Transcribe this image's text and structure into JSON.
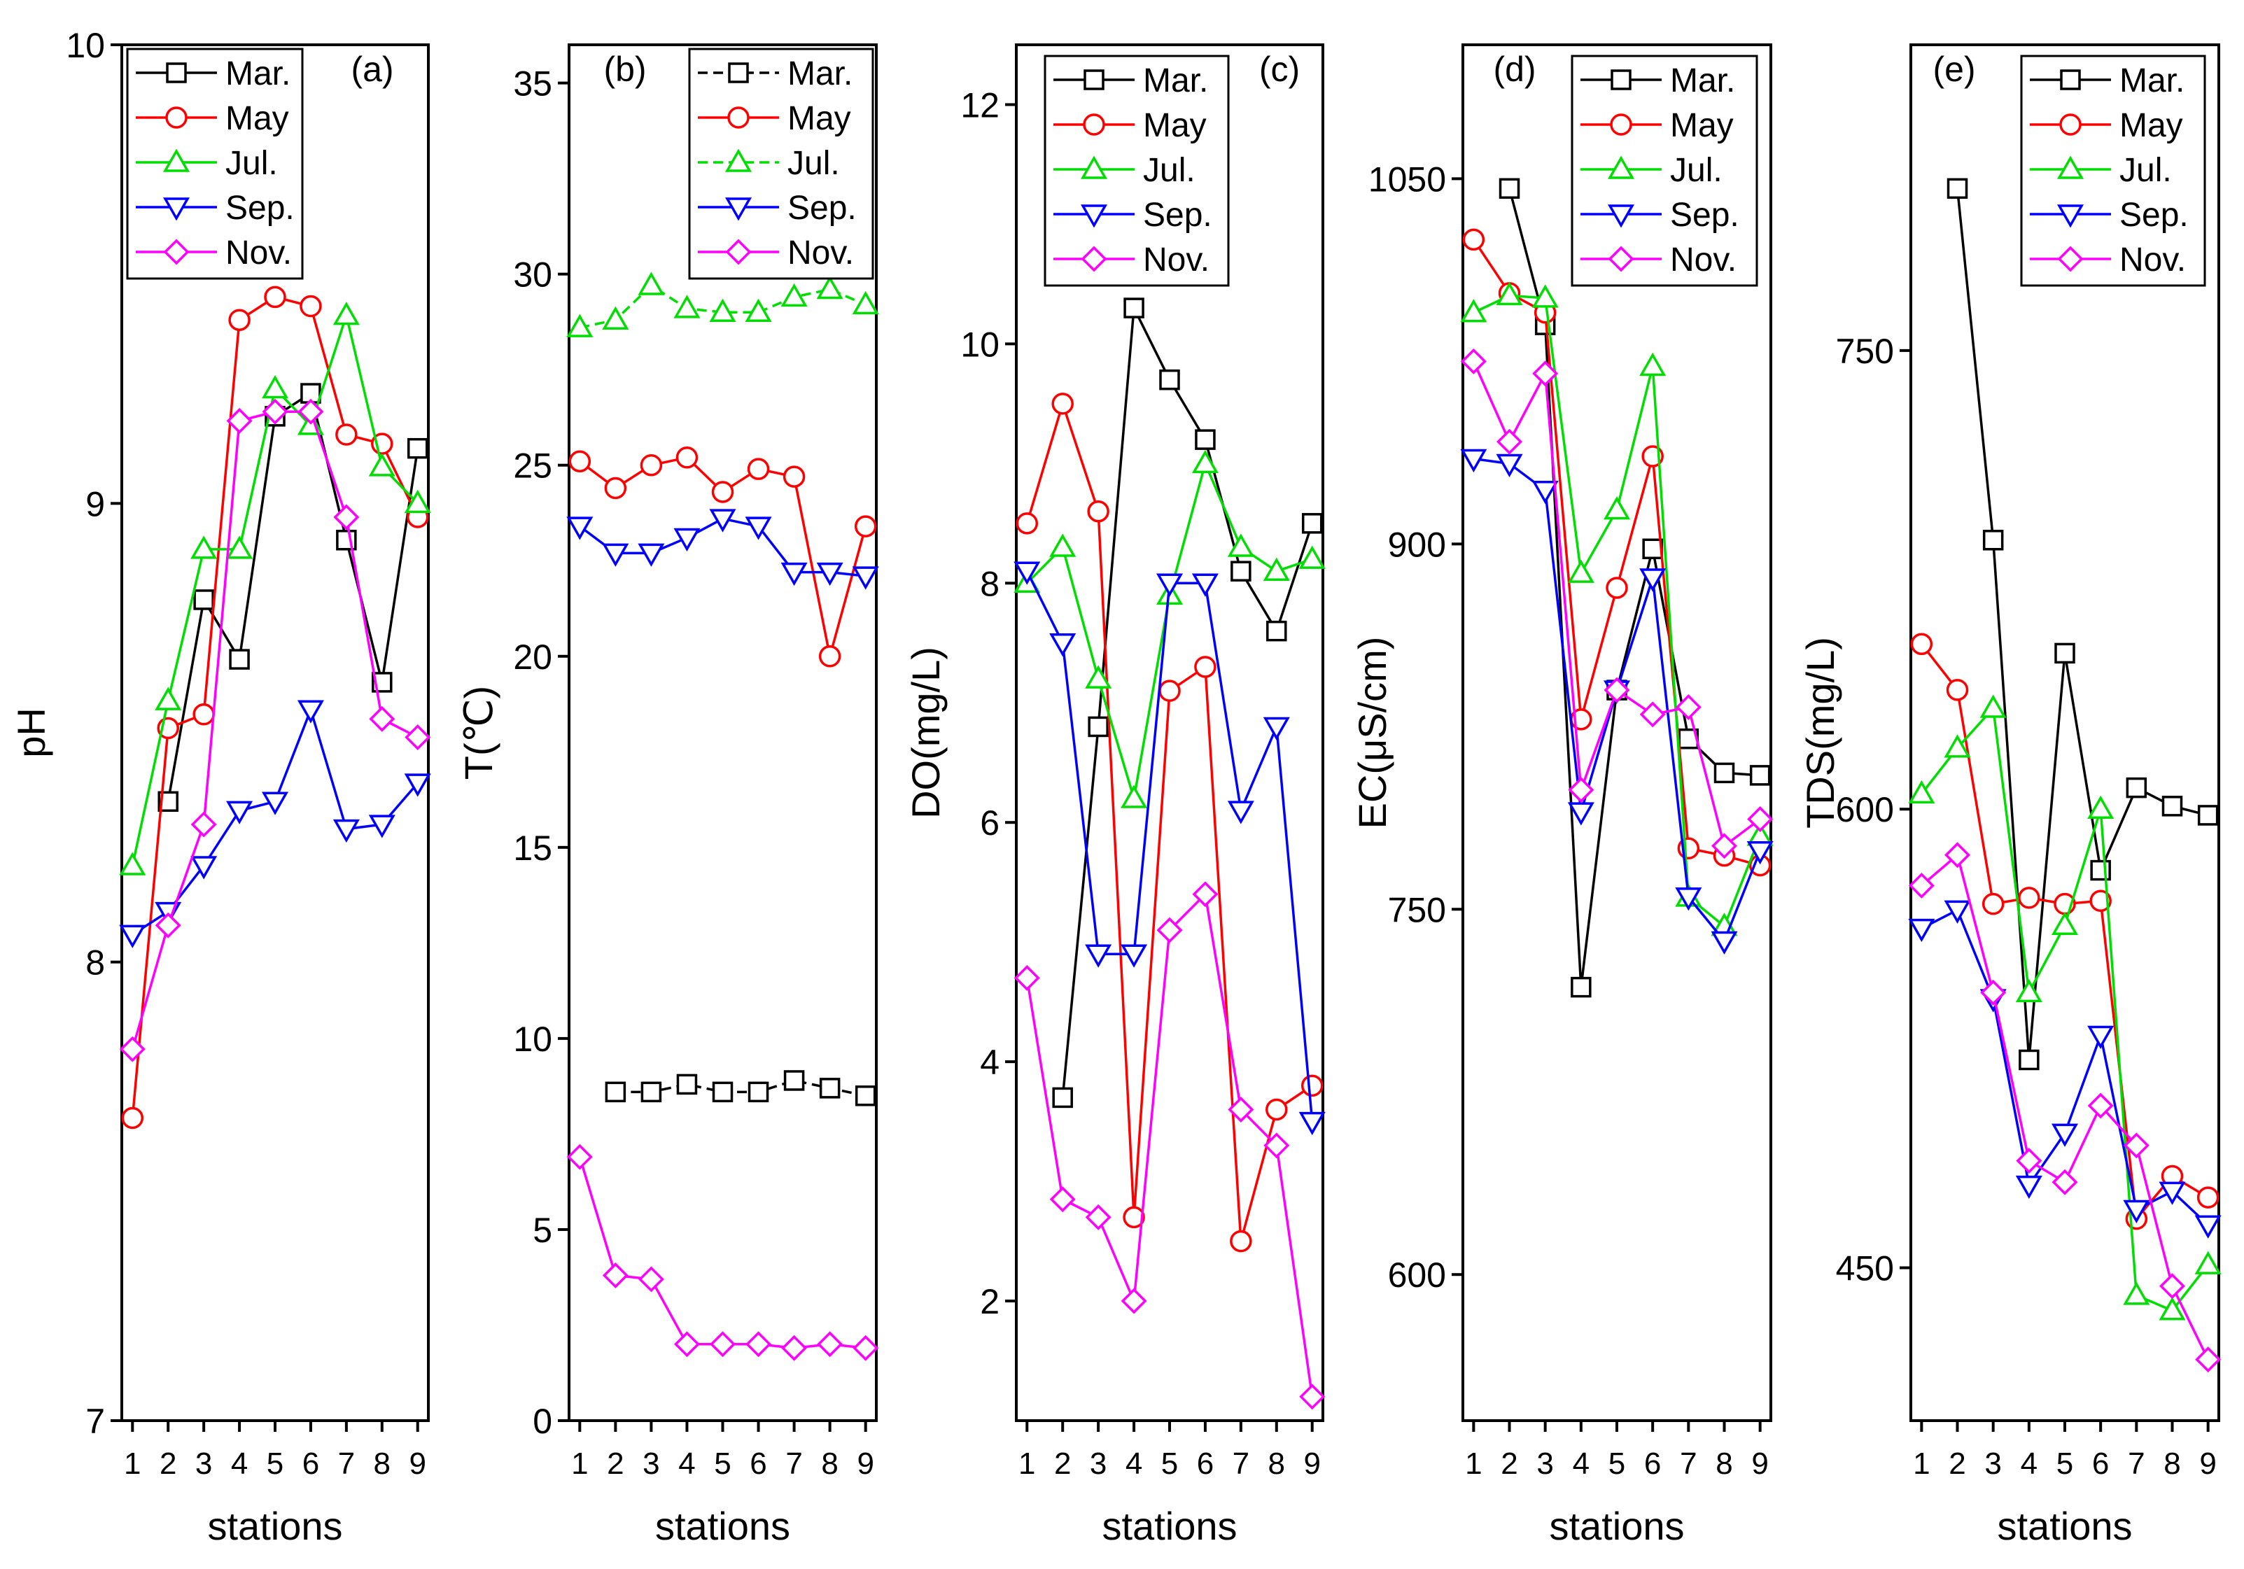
{
  "chart_data": [
    {
      "type": "line",
      "panel_label": "(a)",
      "ylabel": "pH",
      "xlabel": "stations",
      "ylim": [
        7,
        10
      ],
      "yticks": [
        7,
        8,
        9,
        10
      ],
      "xlim": [
        0.7,
        9.3
      ],
      "x": [
        1,
        2,
        3,
        4,
        5,
        6,
        7,
        8,
        9
      ],
      "legend_position": "top-left",
      "series": [
        {
          "name": "Mar.",
          "color": "#000000",
          "marker": "square",
          "dashed": false,
          "values": [
            null,
            8.35,
            8.79,
            8.66,
            9.19,
            9.24,
            8.92,
            8.61,
            9.12
          ]
        },
        {
          "name": "May",
          "color": "#ff0000",
          "marker": "circle",
          "dashed": false,
          "values": [
            7.66,
            8.51,
            8.54,
            9.4,
            9.45,
            9.43,
            9.15,
            9.13,
            8.97
          ]
        },
        {
          "name": "Jul.",
          "color": "#00dd00",
          "marker": "triangle-up",
          "dashed": false,
          "values": [
            8.21,
            8.57,
            8.9,
            8.9,
            9.25,
            9.17,
            9.41,
            9.08,
            9.0
          ]
        },
        {
          "name": "Sep.",
          "color": "#0000ff",
          "marker": "triangle-down",
          "dashed": false,
          "values": [
            8.06,
            8.11,
            8.21,
            8.33,
            8.35,
            8.55,
            8.29,
            8.3,
            8.39
          ]
        },
        {
          "name": "Nov.",
          "color": "#ff00ff",
          "marker": "diamond",
          "dashed": false,
          "values": [
            7.81,
            8.08,
            8.3,
            9.18,
            9.2,
            9.2,
            8.97,
            8.53,
            8.49
          ]
        }
      ]
    },
    {
      "type": "line",
      "panel_label": "(b)",
      "ylabel": "T(℃)",
      "xlabel": "stations",
      "ylim": [
        0,
        36
      ],
      "yticks": [
        0,
        5,
        10,
        15,
        20,
        25,
        30,
        35
      ],
      "xlim": [
        0.7,
        9.3
      ],
      "x": [
        1,
        2,
        3,
        4,
        5,
        6,
        7,
        8,
        9
      ],
      "legend_position": "top-right",
      "series": [
        {
          "name": "Mar.",
          "color": "#000000",
          "marker": "square",
          "dashed": true,
          "values": [
            null,
            8.6,
            8.6,
            8.8,
            8.6,
            8.6,
            8.9,
            8.7,
            8.5
          ]
        },
        {
          "name": "May",
          "color": "#ff0000",
          "marker": "circle",
          "dashed": false,
          "values": [
            25.1,
            24.4,
            25.0,
            25.2,
            24.3,
            24.9,
            24.7,
            20.0,
            23.4
          ]
        },
        {
          "name": "Jul.",
          "color": "#00dd00",
          "marker": "triangle-up",
          "dashed": true,
          "values": [
            28.6,
            28.8,
            29.7,
            29.1,
            29.0,
            29.0,
            29.4,
            29.6,
            29.2
          ]
        },
        {
          "name": "Sep.",
          "color": "#0000ff",
          "marker": "triangle-down",
          "dashed": false,
          "values": [
            23.4,
            22.7,
            22.7,
            23.1,
            23.6,
            23.4,
            22.2,
            22.2,
            22.1
          ]
        },
        {
          "name": "Nov.",
          "color": "#ff00ff",
          "marker": "diamond",
          "dashed": false,
          "values": [
            6.9,
            3.8,
            3.7,
            2.0,
            2.0,
            2.0,
            1.9,
            2.0,
            1.9
          ]
        }
      ]
    },
    {
      "type": "line",
      "panel_label": "(c)",
      "ylabel": "DO(mg/L)",
      "xlabel": "stations",
      "ylim": [
        1,
        12.5
      ],
      "yticks": [
        2,
        4,
        6,
        8,
        10,
        12
      ],
      "xlim": [
        0.7,
        9.3
      ],
      "x": [
        1,
        2,
        3,
        4,
        5,
        6,
        7,
        8,
        9
      ],
      "legend_position": "top-left",
      "series": [
        {
          "name": "Mar.",
          "color": "#000000",
          "marker": "square",
          "dashed": false,
          "values": [
            null,
            3.7,
            6.8,
            10.3,
            9.7,
            9.2,
            8.1,
            7.6,
            8.5
          ]
        },
        {
          "name": "May",
          "color": "#ff0000",
          "marker": "circle",
          "dashed": false,
          "values": [
            8.5,
            9.5,
            8.6,
            2.7,
            7.1,
            7.3,
            2.5,
            3.6,
            3.8
          ]
        },
        {
          "name": "Jul.",
          "color": "#00dd00",
          "marker": "triangle-up",
          "dashed": false,
          "values": [
            8.0,
            8.3,
            7.2,
            6.2,
            7.9,
            9.0,
            8.3,
            8.1,
            8.2
          ]
        },
        {
          "name": "Sep.",
          "color": "#0000ff",
          "marker": "triangle-down",
          "dashed": false,
          "values": [
            8.1,
            7.5,
            4.9,
            4.9,
            8.0,
            8.0,
            6.1,
            6.8,
            3.5
          ]
        },
        {
          "name": "Nov.",
          "color": "#ff00ff",
          "marker": "diamond",
          "dashed": false,
          "values": [
            4.7,
            2.85,
            2.7,
            2.0,
            5.1,
            5.4,
            3.6,
            3.3,
            1.2
          ]
        }
      ]
    },
    {
      "type": "line",
      "panel_label": "(d)",
      "ylabel": "EC(μS/cm)",
      "xlabel": "stations",
      "ylim": [
        540,
        1105
      ],
      "yticks": [
        600,
        750,
        900,
        1050
      ],
      "xlim": [
        0.7,
        9.3
      ],
      "x": [
        1,
        2,
        3,
        4,
        5,
        6,
        7,
        8,
        9
      ],
      "legend_position": "top-left",
      "series": [
        {
          "name": "Mar.",
          "color": "#000000",
          "marker": "square",
          "dashed": false,
          "values": [
            null,
            1046,
            990,
            718,
            840,
            898,
            820,
            806,
            805
          ]
        },
        {
          "name": "May",
          "color": "#ff0000",
          "marker": "circle",
          "dashed": false,
          "values": [
            1025,
            1003,
            995,
            828,
            882,
            936,
            775,
            772,
            768
          ]
        },
        {
          "name": "Jul.",
          "color": "#00dd00",
          "marker": "triangle-up",
          "dashed": false,
          "values": [
            995,
            1002,
            1001,
            888,
            914,
            973,
            755,
            743,
            780
          ]
        },
        {
          "name": "Sep.",
          "color": "#0000ff",
          "marker": "triangle-down",
          "dashed": false,
          "values": [
            935,
            933,
            922,
            790,
            840,
            886,
            755,
            737,
            774
          ]
        },
        {
          "name": "Nov.",
          "color": "#ff00ff",
          "marker": "diamond",
          "dashed": false,
          "values": [
            975,
            942,
            970,
            799,
            840,
            830,
            833,
            776,
            787
          ]
        }
      ]
    },
    {
      "type": "line",
      "panel_label": "(e)",
      "ylabel": "TDS(mg/L)",
      "xlabel": "stations",
      "ylim": [
        400,
        850
      ],
      "yticks": [
        450,
        600,
        750
      ],
      "xlim": [
        0.7,
        9.3
      ],
      "x": [
        1,
        2,
        3,
        4,
        5,
        6,
        7,
        8,
        9
      ],
      "legend_position": "top-left",
      "series": [
        {
          "name": "Mar.",
          "color": "#000000",
          "marker": "square",
          "dashed": false,
          "values": [
            null,
            803,
            688,
            518,
            651,
            580,
            607,
            601,
            598
          ]
        },
        {
          "name": "May",
          "color": "#ff0000",
          "marker": "circle",
          "dashed": false,
          "values": [
            654,
            639,
            569,
            571,
            569,
            570,
            466,
            480,
            473
          ]
        },
        {
          "name": "Jul.",
          "color": "#00dd00",
          "marker": "triangle-up",
          "dashed": false,
          "values": [
            605,
            620,
            633,
            540,
            562,
            600,
            441,
            436,
            451
          ]
        },
        {
          "name": "Sep.",
          "color": "#0000ff",
          "marker": "triangle-down",
          "dashed": false,
          "values": [
            561,
            567,
            538,
            477,
            494,
            526,
            469,
            475,
            464
          ]
        },
        {
          "name": "Nov.",
          "color": "#ff00ff",
          "marker": "diamond",
          "dashed": false,
          "values": [
            575,
            585,
            540,
            485,
            478,
            503,
            490,
            444,
            420
          ]
        }
      ]
    }
  ]
}
